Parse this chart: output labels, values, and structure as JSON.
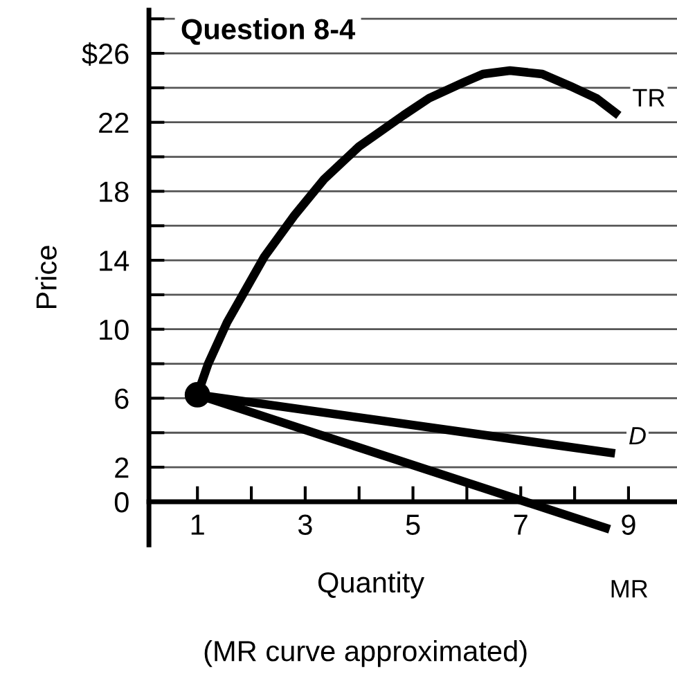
{
  "chart_data": {
    "type": "line",
    "title": "Question 8-4",
    "xlabel": "Quantity",
    "ylabel": "Price",
    "annotations": [
      "(MR curve approximated)"
    ],
    "xlim": [
      0.1,
      9.9
    ],
    "ylim": [
      -2.5,
      28.5
    ],
    "xticks": [
      {
        "value": 1,
        "label": "1"
      },
      {
        "value": 2,
        "label": null
      },
      {
        "value": 3,
        "label": "3"
      },
      {
        "value": 4,
        "label": null
      },
      {
        "value": 5,
        "label": "5"
      },
      {
        "value": 6,
        "label": null
      },
      {
        "value": 7,
        "label": "7"
      },
      {
        "value": 8,
        "label": null
      },
      {
        "value": 9,
        "label": "9"
      }
    ],
    "yticks": [
      0,
      {
        "value": 2,
        "label": "2"
      },
      {
        "value": 4,
        "label": null
      },
      6,
      {
        "value": 8,
        "label": null
      },
      10,
      {
        "value": 12,
        "label": null
      },
      14,
      {
        "value": 16,
        "label": null
      },
      18,
      {
        "value": 20,
        "label": null
      },
      22,
      {
        "value": 24,
        "label": null
      },
      {
        "value": 26,
        "label": "$26"
      },
      {
        "value": 28,
        "label": null
      }
    ],
    "grid": "y",
    "legend": false,
    "line_style": "solid",
    "marker": "none",
    "series": [
      {
        "name": "TR",
        "color": "#000000",
        "x": [
          1,
          1.2,
          1.55,
          2.24,
          2.8,
          3.35,
          4.0,
          4.82,
          5.3,
          5.93,
          6.3,
          6.8,
          7.4,
          7.92,
          8.4,
          8.82
        ],
        "values": [
          6.2,
          8,
          10.4,
          14.2,
          16.6,
          18.7,
          20.6,
          22.4,
          23.4,
          24.3,
          24.8,
          25.0,
          24.8,
          24.1,
          23.4,
          22.4
        ]
      },
      {
        "name": "D",
        "color": "#000000",
        "x": [
          1,
          8.75
        ],
        "values": [
          6.2,
          2.8
        ]
      },
      {
        "name": "MR",
        "color": "#000000",
        "x": [
          1,
          8.65
        ],
        "values": [
          6.2,
          -1.6
        ]
      },
      {
        "type": "scatter",
        "marker": "circle",
        "color": "#000000",
        "x": [
          1
        ],
        "values": [
          6.2
        ]
      }
    ]
  }
}
